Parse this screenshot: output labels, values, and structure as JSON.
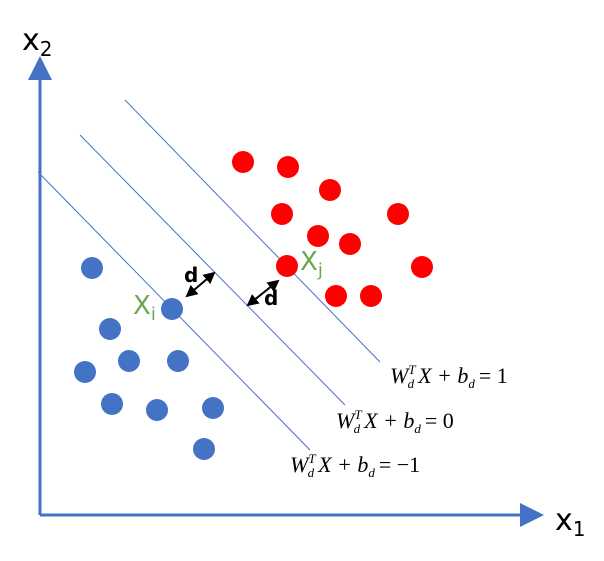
{
  "axes": {
    "x": {
      "label": "x",
      "subscript": "1"
    },
    "y": {
      "label": "x",
      "subscript": "2"
    }
  },
  "points": {
    "xi": {
      "label": "X",
      "subscript": "i"
    },
    "xj": {
      "label": "X",
      "subscript": "j"
    }
  },
  "distances": [
    "d",
    "d"
  ],
  "hyperplanes": [
    {
      "w": "W",
      "sub": "d",
      "sup": "T",
      "mid": "X + b",
      "sub2": "d",
      "rhs": "= 1"
    },
    {
      "w": "W",
      "sub": "d",
      "sup": "T",
      "mid": "X + b",
      "sub2": "d",
      "rhs": "= 0"
    },
    {
      "w": "W",
      "sub": "d",
      "sup": "T",
      "mid": "X + b",
      "sub2": "d",
      "rhs": "= −1"
    }
  ]
}
